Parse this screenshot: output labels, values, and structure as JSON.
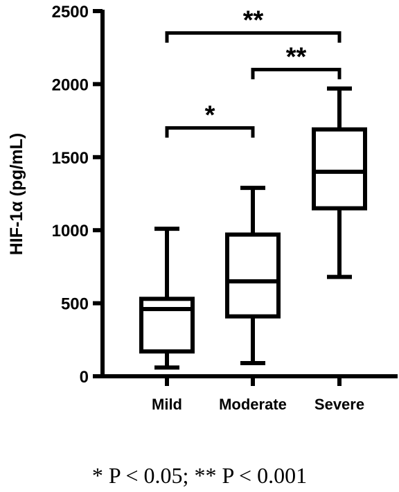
{
  "chart_data": {
    "type": "box",
    "ylabel": "HIF-1α (pg/mL)",
    "ylim": [
      0,
      2500
    ],
    "yticks": [
      0,
      500,
      1000,
      1500,
      2000,
      2500
    ],
    "categories": [
      "Mild",
      "Moderate",
      "Severe"
    ],
    "boxes": [
      {
        "category": "Mild",
        "min": 60,
        "q1": 170,
        "median": 460,
        "q3": 530,
        "max": 1010
      },
      {
        "category": "Moderate",
        "min": 90,
        "q1": 410,
        "median": 650,
        "q3": 970,
        "max": 1290
      },
      {
        "category": "Severe",
        "min": 680,
        "q1": 1150,
        "median": 1400,
        "q3": 1690,
        "max": 1970
      }
    ],
    "significance": [
      {
        "from": "Mild",
        "to": "Moderate",
        "y": 1700,
        "label": "*"
      },
      {
        "from": "Moderate",
        "to": "Severe",
        "y": 2100,
        "label": "**"
      },
      {
        "from": "Mild",
        "to": "Severe",
        "y": 2350,
        "label": "**"
      }
    ]
  },
  "footnote": "* P < 0.05; ** P < 0.001"
}
